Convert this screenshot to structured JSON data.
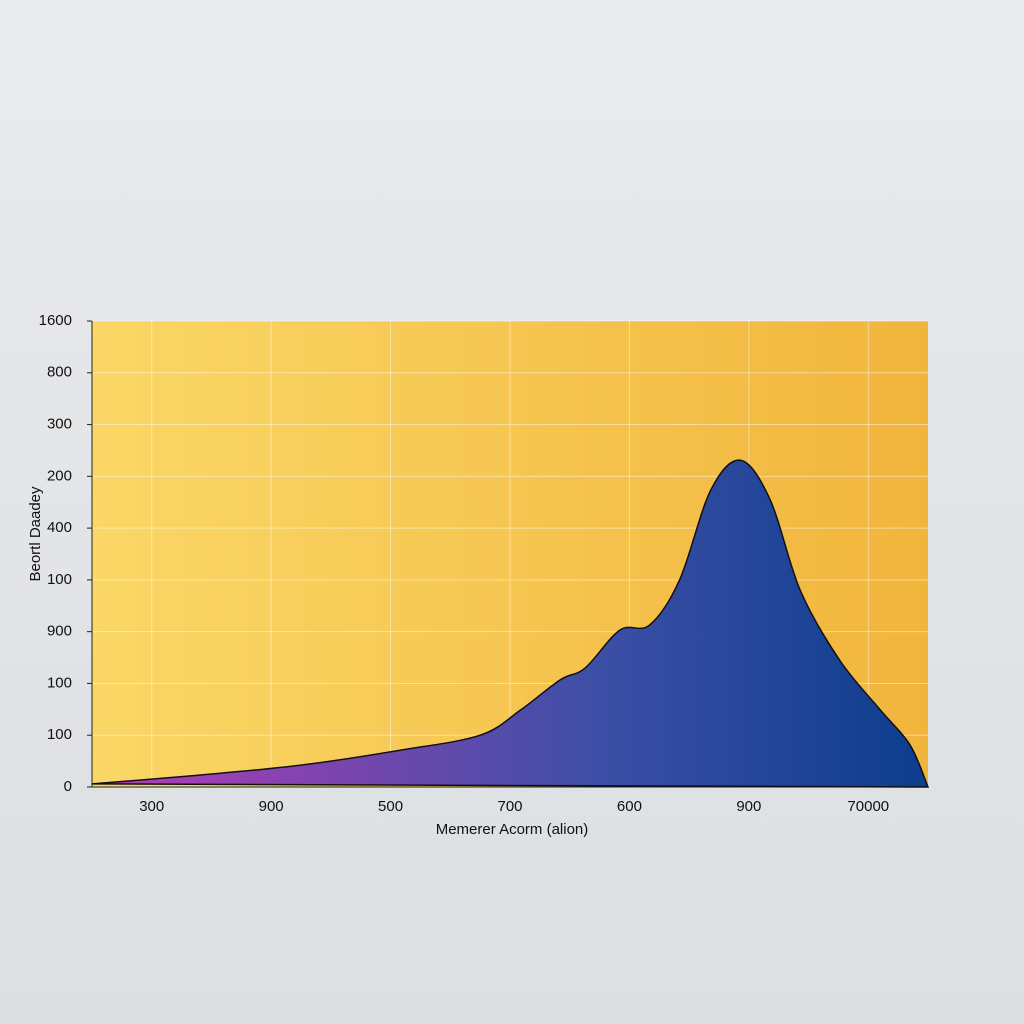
{
  "chart_data": {
    "type": "area",
    "y_label": "Beortl Daadey",
    "x_label": "Memerer Acorm (alion)",
    "x": [
      0,
      0.9,
      1.74,
      2.58,
      3.25,
      3.59,
      3.92,
      4.13,
      4.42,
      4.67,
      4.92,
      5.18,
      5.43,
      5.68,
      5.93,
      6.26,
      6.6,
      6.85,
      7.0
    ],
    "values": [
      0.06,
      0.23,
      0.42,
      0.71,
      1.0,
      1.49,
      2.07,
      2.3,
      3.03,
      3.13,
      4.0,
      5.73,
      6.31,
      5.54,
      3.8,
      2.45,
      1.49,
      0.81,
      0
    ],
    "gradient": [
      "#b53cb6",
      "#3d4fa6",
      "#0c3d8e"
    ],
    "plot_background": [
      "#fad766",
      "#f1b53c"
    ],
    "xlim": [
      0,
      7
    ],
    "xticks": [
      {
        "value": 0.5,
        "label": "300"
      },
      {
        "value": 1.5,
        "label": "900"
      },
      {
        "value": 2.5,
        "label": "500"
      },
      {
        "value": 3.5,
        "label": "700"
      },
      {
        "value": 4.5,
        "label": "600"
      },
      {
        "value": 5.5,
        "label": "900"
      },
      {
        "value": 6.5,
        "label": "70000"
      }
    ],
    "ylim": [
      0,
      9
    ],
    "yticks": [
      {
        "value": 0,
        "label": "0"
      },
      {
        "value": 1,
        "label": "100"
      },
      {
        "value": 2,
        "label": "100"
      },
      {
        "value": 3,
        "label": "900"
      },
      {
        "value": 4,
        "label": "100"
      },
      {
        "value": 5,
        "label": "400"
      },
      {
        "value": 6,
        "label": "200"
      },
      {
        "value": 7,
        "label": "300"
      },
      {
        "value": 8,
        "label": "800"
      },
      {
        "value": 9,
        "label": "1600"
      }
    ],
    "grid": true
  }
}
